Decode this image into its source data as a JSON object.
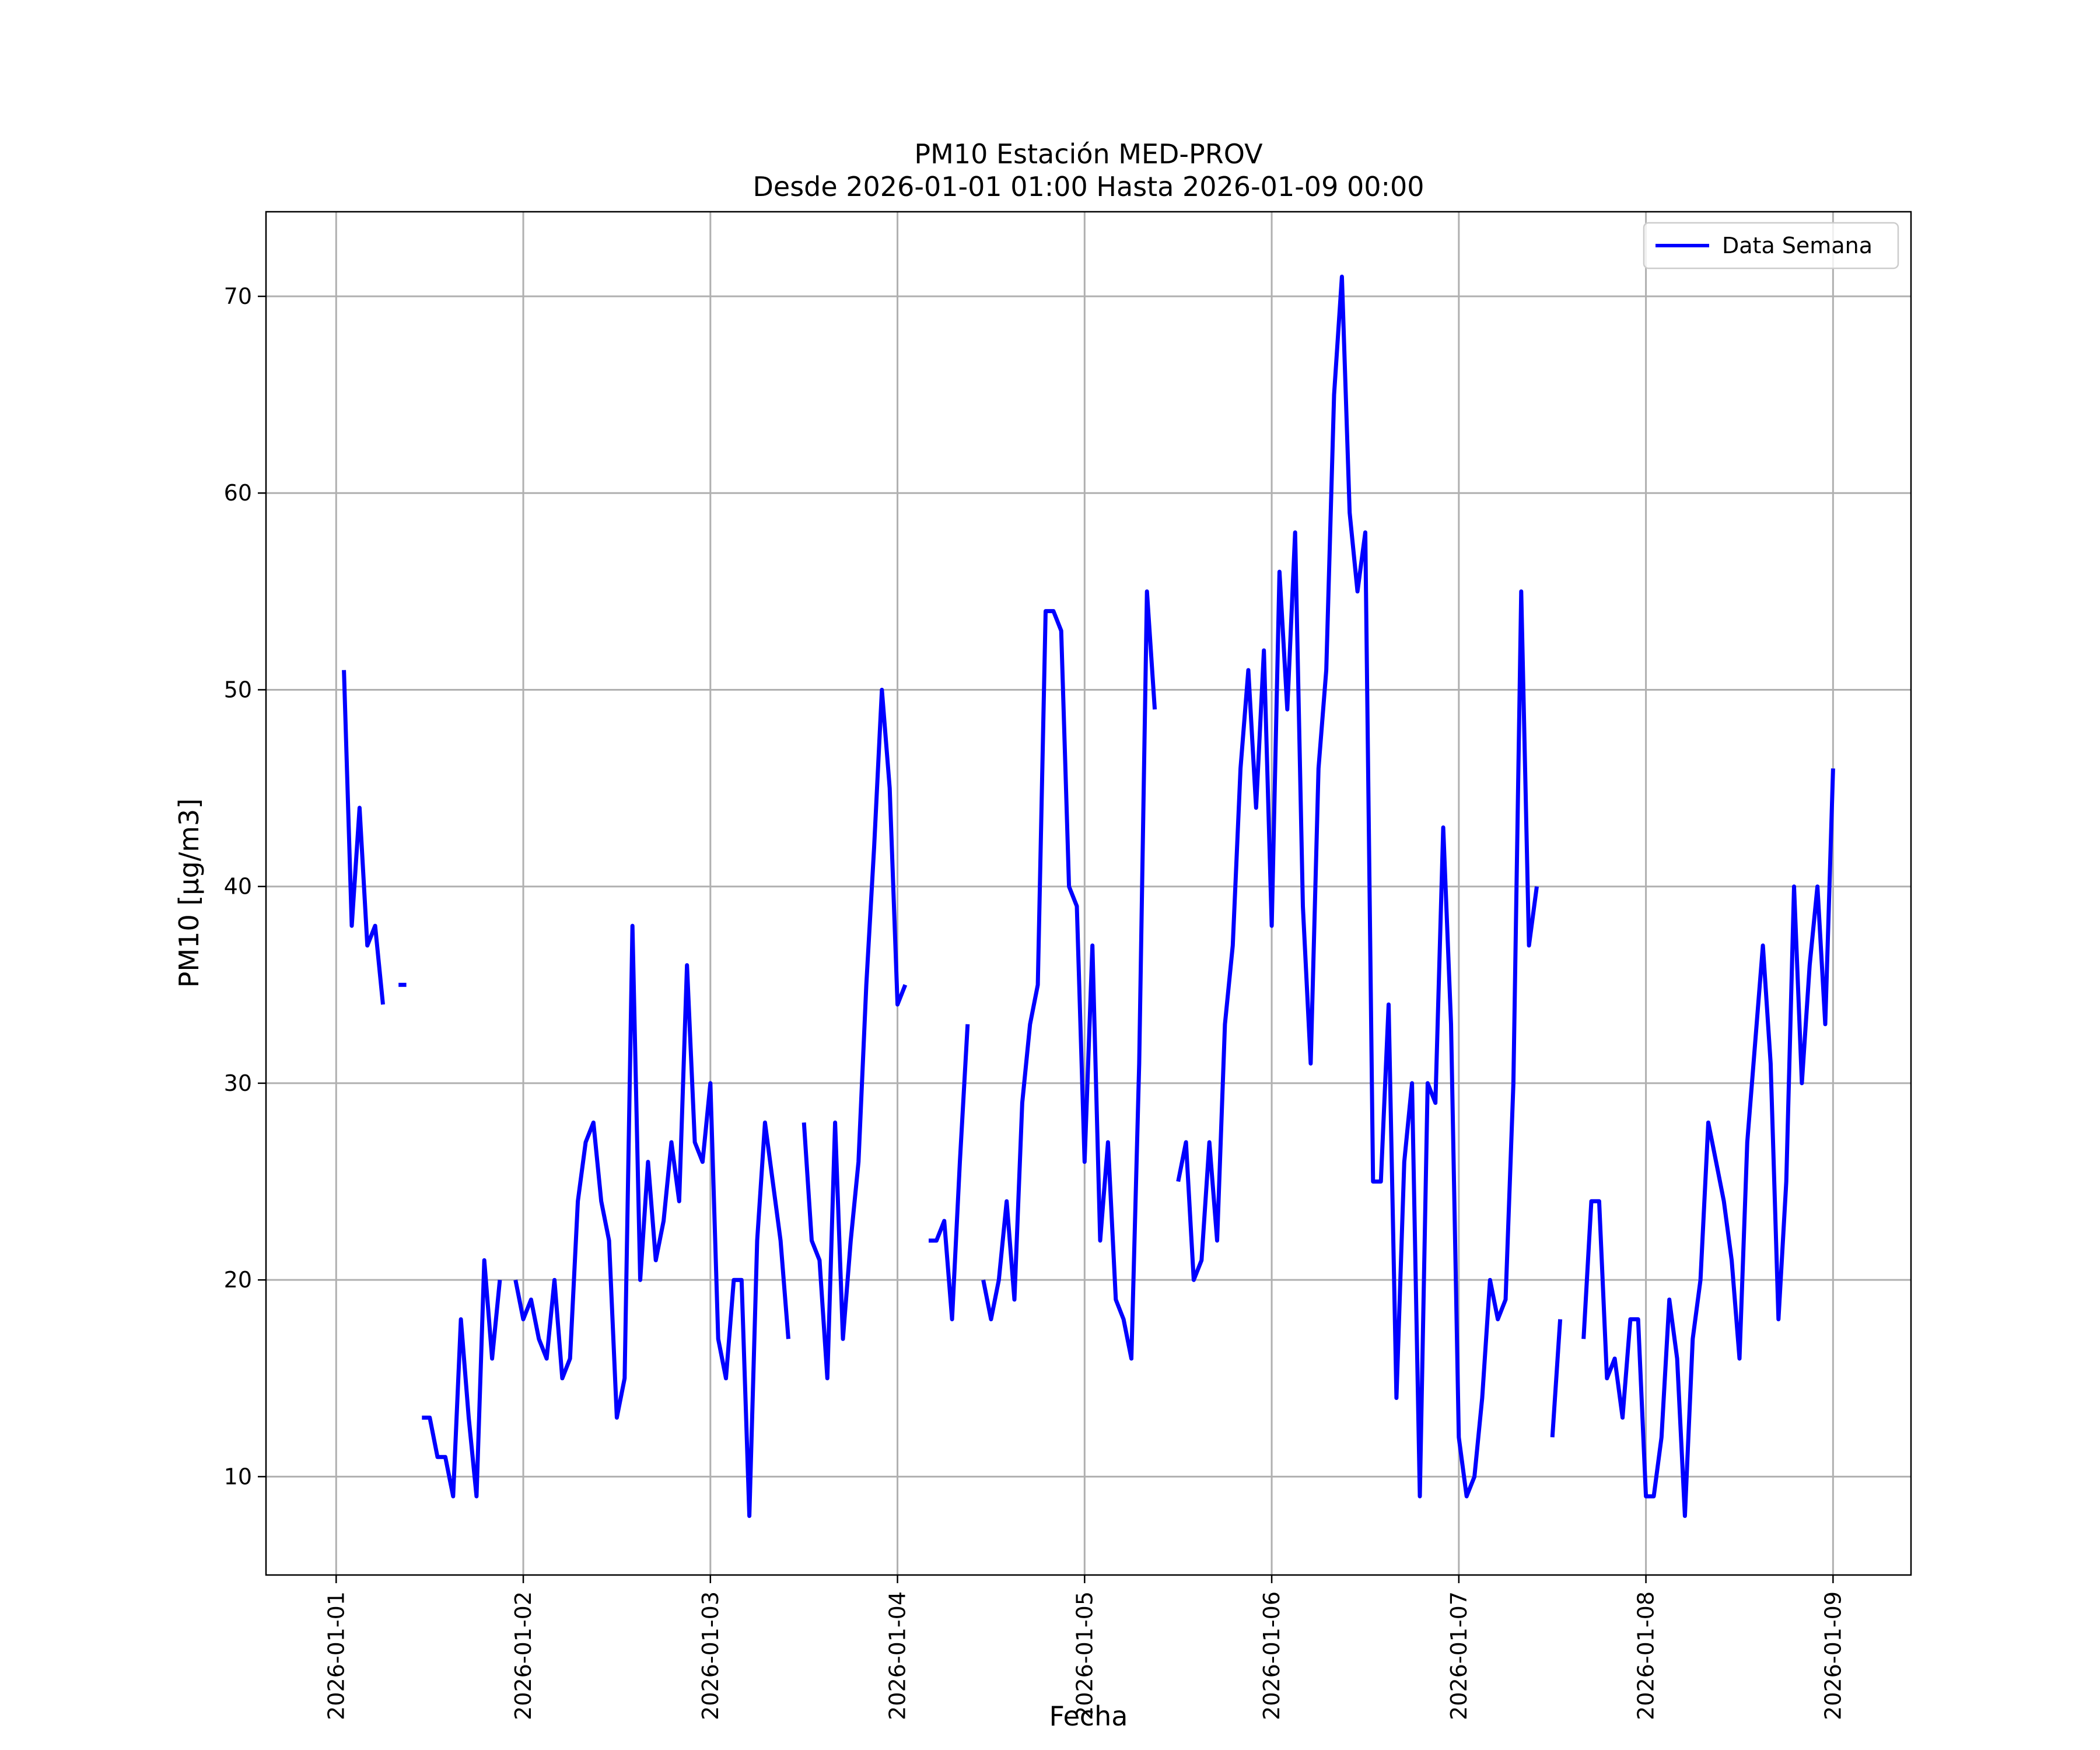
{
  "chart_data": {
    "type": "line",
    "title": "PM10 Estación MED-PROV",
    "subtitle": "Desde 2026-01-01 01:00 Hasta 2026-01-09 00:00",
    "xlabel": "Fecha",
    "ylabel": "PM10 [μg/m3]",
    "xlim": [
      "2025-12-31T15:00",
      "2026-01-09T10:00"
    ],
    "ylim": [
      5,
      74.3
    ],
    "x_ticks": [
      "2026-01-01",
      "2026-01-02",
      "2026-01-03",
      "2026-01-04",
      "2026-01-05",
      "2026-01-06",
      "2026-01-07",
      "2026-01-08",
      "2026-01-09"
    ],
    "y_ticks": [
      10,
      20,
      30,
      40,
      50,
      60,
      70
    ],
    "grid": true,
    "legend_position": "top-right",
    "colors": {
      "series": "#0000ff"
    },
    "series": [
      {
        "name": "Data Semana",
        "points": [
          [
            "2026-01-01T01:00",
            51
          ],
          [
            "2026-01-01T02:00",
            38
          ],
          [
            "2026-01-01T03:00",
            44
          ],
          [
            "2026-01-01T04:00",
            37
          ],
          [
            "2026-01-01T05:00",
            38
          ],
          [
            "2026-01-01T06:00",
            34
          ],
          [
            "2026-01-01T07:00",
            null
          ],
          [
            "2026-01-01T08:00",
            35
          ],
          [
            "2026-01-01T09:00",
            35
          ],
          [
            "2026-01-01T10:00",
            null
          ],
          [
            "2026-01-01T11:00",
            13
          ],
          [
            "2026-01-01T12:00",
            13
          ],
          [
            "2026-01-01T13:00",
            11
          ],
          [
            "2026-01-01T14:00",
            11
          ],
          [
            "2026-01-01T15:00",
            9
          ],
          [
            "2026-01-01T16:00",
            18
          ],
          [
            "2026-01-01T17:00",
            13
          ],
          [
            "2026-01-01T18:00",
            9
          ],
          [
            "2026-01-01T19:00",
            21
          ],
          [
            "2026-01-01T20:00",
            16
          ],
          [
            "2026-01-01T21:00",
            20
          ],
          [
            "2026-01-01T22:00",
            null
          ],
          [
            "2026-01-01T23:00",
            20
          ],
          [
            "2026-01-02T00:00",
            18
          ],
          [
            "2026-01-02T01:00",
            19
          ],
          [
            "2026-01-02T02:00",
            17
          ],
          [
            "2026-01-02T03:00",
            16
          ],
          [
            "2026-01-02T04:00",
            20
          ],
          [
            "2026-01-02T05:00",
            15
          ],
          [
            "2026-01-02T06:00",
            16
          ],
          [
            "2026-01-02T07:00",
            24
          ],
          [
            "2026-01-02T08:00",
            27
          ],
          [
            "2026-01-02T09:00",
            28
          ],
          [
            "2026-01-02T10:00",
            24
          ],
          [
            "2026-01-02T11:00",
            22
          ],
          [
            "2026-01-02T12:00",
            13
          ],
          [
            "2026-01-02T13:00",
            15
          ],
          [
            "2026-01-02T14:00",
            38
          ],
          [
            "2026-01-02T15:00",
            20
          ],
          [
            "2026-01-02T16:00",
            26
          ],
          [
            "2026-01-02T17:00",
            21
          ],
          [
            "2026-01-02T18:00",
            23
          ],
          [
            "2026-01-02T19:00",
            27
          ],
          [
            "2026-01-02T20:00",
            24
          ],
          [
            "2026-01-02T21:00",
            36
          ],
          [
            "2026-01-02T22:00",
            27
          ],
          [
            "2026-01-02T23:00",
            26
          ],
          [
            "2026-01-03T00:00",
            30
          ],
          [
            "2026-01-03T01:00",
            17
          ],
          [
            "2026-01-03T02:00",
            15
          ],
          [
            "2026-01-03T03:00",
            20
          ],
          [
            "2026-01-03T04:00",
            20
          ],
          [
            "2026-01-03T05:00",
            8
          ],
          [
            "2026-01-03T06:00",
            22
          ],
          [
            "2026-01-03T07:00",
            28
          ],
          [
            "2026-01-03T08:00",
            25
          ],
          [
            "2026-01-03T09:00",
            22
          ],
          [
            "2026-01-03T10:00",
            17
          ],
          [
            "2026-01-03T11:00",
            null
          ],
          [
            "2026-01-03T12:00",
            28
          ],
          [
            "2026-01-03T13:00",
            22
          ],
          [
            "2026-01-03T14:00",
            21
          ],
          [
            "2026-01-03T15:00",
            15
          ],
          [
            "2026-01-03T16:00",
            28
          ],
          [
            "2026-01-03T17:00",
            17
          ],
          [
            "2026-01-03T18:00",
            22
          ],
          [
            "2026-01-03T19:00",
            26
          ],
          [
            "2026-01-03T20:00",
            35
          ],
          [
            "2026-01-03T21:00",
            42
          ],
          [
            "2026-01-03T22:00",
            50
          ],
          [
            "2026-01-03T23:00",
            45
          ],
          [
            "2026-01-04T00:00",
            34
          ],
          [
            "2026-01-04T01:00",
            35
          ],
          [
            "2026-01-04T02:00",
            null
          ],
          [
            "2026-01-04T04:00",
            22
          ],
          [
            "2026-01-04T05:00",
            22
          ],
          [
            "2026-01-04T06:00",
            23
          ],
          [
            "2026-01-04T07:00",
            18
          ],
          [
            "2026-01-04T08:00",
            26
          ],
          [
            "2026-01-04T09:00",
            33
          ],
          [
            "2026-01-04T10:00",
            null
          ],
          [
            "2026-01-04T11:00",
            20
          ],
          [
            "2026-01-04T12:00",
            18
          ],
          [
            "2026-01-04T13:00",
            20
          ],
          [
            "2026-01-04T14:00",
            24
          ],
          [
            "2026-01-04T15:00",
            19
          ],
          [
            "2026-01-04T16:00",
            29
          ],
          [
            "2026-01-04T17:00",
            33
          ],
          [
            "2026-01-04T18:00",
            35
          ],
          [
            "2026-01-04T19:00",
            54
          ],
          [
            "2026-01-04T20:00",
            54
          ],
          [
            "2026-01-04T21:00",
            53
          ],
          [
            "2026-01-04T22:00",
            40
          ],
          [
            "2026-01-04T23:00",
            39
          ],
          [
            "2026-01-05T00:00",
            26
          ],
          [
            "2026-01-05T01:00",
            37
          ],
          [
            "2026-01-05T02:00",
            22
          ],
          [
            "2026-01-05T03:00",
            27
          ],
          [
            "2026-01-05T04:00",
            19
          ],
          [
            "2026-01-05T05:00",
            18
          ],
          [
            "2026-01-05T06:00",
            16
          ],
          [
            "2026-01-05T07:00",
            31
          ],
          [
            "2026-01-05T08:00",
            55
          ],
          [
            "2026-01-05T09:00",
            49
          ],
          [
            "2026-01-05T10:00",
            null
          ],
          [
            "2026-01-05T12:00",
            25
          ],
          [
            "2026-01-05T13:00",
            27
          ],
          [
            "2026-01-05T14:00",
            20
          ],
          [
            "2026-01-05T15:00",
            21
          ],
          [
            "2026-01-05T16:00",
            27
          ],
          [
            "2026-01-05T17:00",
            22
          ],
          [
            "2026-01-05T18:00",
            33
          ],
          [
            "2026-01-05T19:00",
            37
          ],
          [
            "2026-01-05T20:00",
            46
          ],
          [
            "2026-01-05T21:00",
            51
          ],
          [
            "2026-01-05T22:00",
            44
          ],
          [
            "2026-01-05T23:00",
            52
          ],
          [
            "2026-01-06T00:00",
            38
          ],
          [
            "2026-01-06T01:00",
            56
          ],
          [
            "2026-01-06T02:00",
            49
          ],
          [
            "2026-01-06T03:00",
            58
          ],
          [
            "2026-01-06T04:00",
            39
          ],
          [
            "2026-01-06T05:00",
            31
          ],
          [
            "2026-01-06T06:00",
            46
          ],
          [
            "2026-01-06T07:00",
            51
          ],
          [
            "2026-01-06T08:00",
            65
          ],
          [
            "2026-01-06T09:00",
            71
          ],
          [
            "2026-01-06T10:00",
            59
          ],
          [
            "2026-01-06T11:00",
            55
          ],
          [
            "2026-01-06T12:00",
            58
          ],
          [
            "2026-01-06T13:00",
            25
          ],
          [
            "2026-01-06T14:00",
            25
          ],
          [
            "2026-01-06T15:00",
            34
          ],
          [
            "2026-01-06T16:00",
            14
          ],
          [
            "2026-01-06T17:00",
            26
          ],
          [
            "2026-01-06T18:00",
            30
          ],
          [
            "2026-01-06T19:00",
            9
          ],
          [
            "2026-01-06T20:00",
            30
          ],
          [
            "2026-01-06T21:00",
            29
          ],
          [
            "2026-01-06T22:00",
            43
          ],
          [
            "2026-01-06T23:00",
            33
          ],
          [
            "2026-01-07T00:00",
            12
          ],
          [
            "2026-01-07T01:00",
            9
          ],
          [
            "2026-01-07T02:00",
            10
          ],
          [
            "2026-01-07T03:00",
            14
          ],
          [
            "2026-01-07T04:00",
            20
          ],
          [
            "2026-01-07T05:00",
            18
          ],
          [
            "2026-01-07T06:00",
            19
          ],
          [
            "2026-01-07T07:00",
            30
          ],
          [
            "2026-01-07T08:00",
            55
          ],
          [
            "2026-01-07T09:00",
            37
          ],
          [
            "2026-01-07T10:00",
            40
          ],
          [
            "2026-01-07T11:00",
            null
          ],
          [
            "2026-01-07T12:00",
            12
          ],
          [
            "2026-01-07T13:00",
            18
          ],
          [
            "2026-01-07T14:00",
            null
          ],
          [
            "2026-01-07T16:00",
            17
          ],
          [
            "2026-01-07T17:00",
            24
          ],
          [
            "2026-01-07T18:00",
            24
          ],
          [
            "2026-01-07T19:00",
            15
          ],
          [
            "2026-01-07T20:00",
            16
          ],
          [
            "2026-01-07T21:00",
            13
          ],
          [
            "2026-01-07T22:00",
            18
          ],
          [
            "2026-01-07T23:00",
            18
          ],
          [
            "2026-01-08T00:00",
            9
          ],
          [
            "2026-01-08T01:00",
            9
          ],
          [
            "2026-01-08T02:00",
            12
          ],
          [
            "2026-01-08T03:00",
            19
          ],
          [
            "2026-01-08T04:00",
            16
          ],
          [
            "2026-01-08T05:00",
            8
          ],
          [
            "2026-01-08T06:00",
            17
          ],
          [
            "2026-01-08T07:00",
            20
          ],
          [
            "2026-01-08T08:00",
            28
          ],
          [
            "2026-01-08T09:00",
            26
          ],
          [
            "2026-01-08T10:00",
            24
          ],
          [
            "2026-01-08T11:00",
            21
          ],
          [
            "2026-01-08T12:00",
            16
          ],
          [
            "2026-01-08T13:00",
            27
          ],
          [
            "2026-01-08T14:00",
            32
          ],
          [
            "2026-01-08T15:00",
            37
          ],
          [
            "2026-01-08T16:00",
            31
          ],
          [
            "2026-01-08T17:00",
            18
          ],
          [
            "2026-01-08T18:00",
            25
          ],
          [
            "2026-01-08T19:00",
            40
          ],
          [
            "2026-01-08T20:00",
            30
          ],
          [
            "2026-01-08T21:00",
            36
          ],
          [
            "2026-01-08T22:00",
            40
          ],
          [
            "2026-01-08T23:00",
            33
          ],
          [
            "2026-01-09T00:00",
            46
          ]
        ]
      }
    ]
  }
}
